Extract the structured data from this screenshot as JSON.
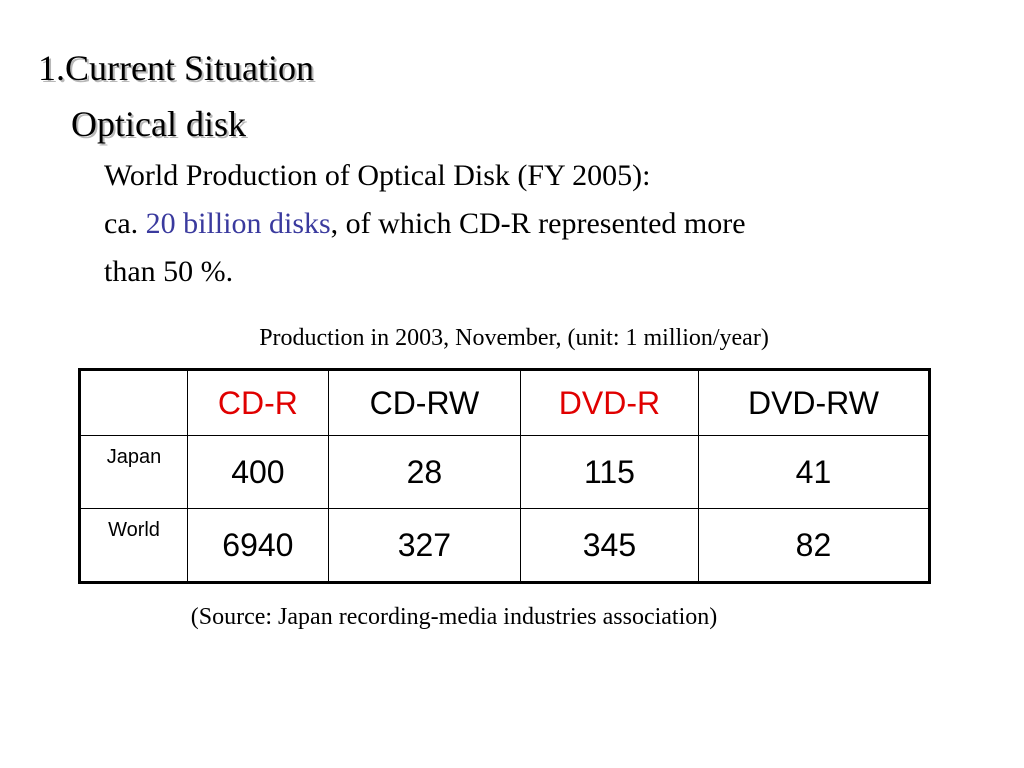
{
  "heading": {
    "title": "1.Current Situation",
    "subtitle": "Optical disk"
  },
  "summary": {
    "line1": "World Production of Optical Disk (FY 2005):",
    "line2_prefix": "ca. ",
    "line2_highlight": "20 billion disks",
    "line2_suffix": ", of which CD-R represented more",
    "line3": "than 50 %.",
    "highlight_color": "#3a3a9e"
  },
  "table": {
    "caption": "Production in 2003, November, (unit: 1 million/year)",
    "corner": "",
    "columns": [
      {
        "label": "CD-R",
        "color": "#e00000"
      },
      {
        "label": "CD-RW",
        "color": "#000000"
      },
      {
        "label": "DVD-R",
        "color": "#e00000"
      },
      {
        "label": "DVD-RW",
        "color": "#000000"
      }
    ],
    "rows": [
      {
        "label": "Japan",
        "values": [
          "400",
          "28",
          "115",
          "41"
        ]
      },
      {
        "label": "World",
        "values": [
          "6940",
          "327",
          "345",
          "82"
        ]
      }
    ]
  },
  "source": "(Source: Japan recording-media industries association)"
}
